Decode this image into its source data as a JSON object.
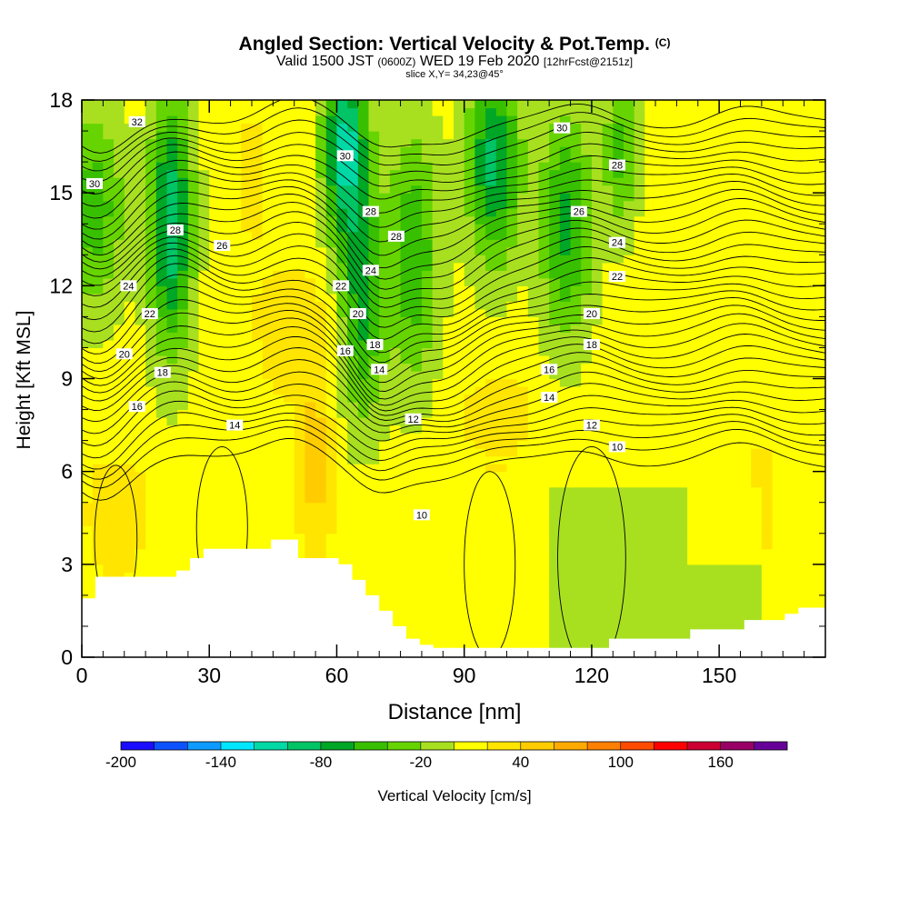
{
  "title": {
    "main": "Angled Section: Vertical Velocity & Pot.Temp.",
    "copyright": "(C)",
    "valid_prefix": "Valid 1500 JST",
    "valid_zulu": "(0600Z)",
    "valid_date": "WED 19 Feb 2020",
    "forecast": "[12hrFcst@2151z]",
    "slice": "slice X,Y= 34,23@45°"
  },
  "chart_data": {
    "type": "contour",
    "xlabel": "Distance [nm]",
    "ylabel": "Height [Kft MSL]",
    "xlim": [
      0,
      175
    ],
    "ylim": [
      0,
      18
    ],
    "x_ticks": [
      0,
      30,
      60,
      90,
      120,
      150
    ],
    "y_ticks": [
      0,
      3,
      6,
      9,
      12,
      15,
      18
    ],
    "colorbar": {
      "label": "Vertical Velocity [cm/s]",
      "tick_labels": [
        -200,
        -140,
        -80,
        -20,
        40,
        100,
        160
      ],
      "levels": [
        -200,
        -180,
        -160,
        -140,
        -120,
        -100,
        -80,
        -60,
        -40,
        -20,
        0,
        20,
        40,
        60,
        80,
        100,
        120,
        140,
        160,
        180
      ],
      "colors": [
        "#1a0dff",
        "#0d52ff",
        "#0d9bff",
        "#00e6ff",
        "#00d9a5",
        "#00c466",
        "#00a626",
        "#38c000",
        "#66d400",
        "#a8e020",
        "#ffff00",
        "#ffe500",
        "#ffcc00",
        "#ffaa00",
        "#ff7f00",
        "#ff4a00",
        "#ff0000",
        "#cc0033",
        "#990066",
        "#660099"
      ]
    },
    "terrain_heights": [
      1.9,
      2.6,
      2.6,
      2.6,
      2.6,
      2.6,
      2.6,
      2.8,
      3.2,
      3.5,
      3.5,
      3.5,
      3.5,
      3.5,
      3.8,
      3.8,
      3.2,
      3.2,
      3.2,
      3.0,
      2.5,
      2.0,
      1.5,
      1.0,
      0.6,
      0.4,
      0.3,
      0.3,
      0.3,
      0.3,
      0.3,
      0.3,
      0.3,
      0.3,
      0.3,
      0.3,
      0.3,
      0.3,
      0.3,
      0.6,
      0.6,
      0.6,
      0.6,
      0.6,
      0.6,
      0.9,
      0.9,
      0.9,
      0.9,
      1.2,
      1.2,
      1.2,
      1.4,
      1.6,
      1.6
    ],
    "theta_contour_labels": [
      {
        "text": "32",
        "x": 13,
        "y": 17.3
      },
      {
        "text": "30",
        "x": 3,
        "y": 15.3
      },
      {
        "text": "30",
        "x": 62,
        "y": 16.2
      },
      {
        "text": "30",
        "x": 113,
        "y": 17.1
      },
      {
        "text": "28",
        "x": 22,
        "y": 13.8
      },
      {
        "text": "28",
        "x": 68,
        "y": 14.4
      },
      {
        "text": "28",
        "x": 74,
        "y": 13.6
      },
      {
        "text": "28",
        "x": 126,
        "y": 15.9
      },
      {
        "text": "26",
        "x": 33,
        "y": 13.3
      },
      {
        "text": "26",
        "x": 117,
        "y": 14.4
      },
      {
        "text": "24",
        "x": 11,
        "y": 12.0
      },
      {
        "text": "24",
        "x": 68,
        "y": 12.5
      },
      {
        "text": "24",
        "x": 126,
        "y": 13.4
      },
      {
        "text": "22",
        "x": 16,
        "y": 11.1
      },
      {
        "text": "22",
        "x": 61,
        "y": 12.0
      },
      {
        "text": "22",
        "x": 126,
        "y": 12.3
      },
      {
        "text": "20",
        "x": 10,
        "y": 9.8
      },
      {
        "text": "20",
        "x": 65,
        "y": 11.1
      },
      {
        "text": "20",
        "x": 120,
        "y": 11.1
      },
      {
        "text": "18",
        "x": 19,
        "y": 9.2
      },
      {
        "text": "18",
        "x": 69,
        "y": 10.1
      },
      {
        "text": "18",
        "x": 120,
        "y": 10.1
      },
      {
        "text": "16",
        "x": 13,
        "y": 8.1
      },
      {
        "text": "16",
        "x": 62,
        "y": 9.9
      },
      {
        "text": "16",
        "x": 110,
        "y": 9.3
      },
      {
        "text": "14",
        "x": 36,
        "y": 7.5
      },
      {
        "text": "14",
        "x": 70,
        "y": 9.3
      },
      {
        "text": "14",
        "x": 110,
        "y": 8.4
      },
      {
        "text": "12",
        "x": 78,
        "y": 7.7
      },
      {
        "text": "12",
        "x": 120,
        "y": 7.5
      },
      {
        "text": "10",
        "x": 80,
        "y": 4.6
      },
      {
        "text": "10",
        "x": 126,
        "y": 6.8
      }
    ]
  }
}
